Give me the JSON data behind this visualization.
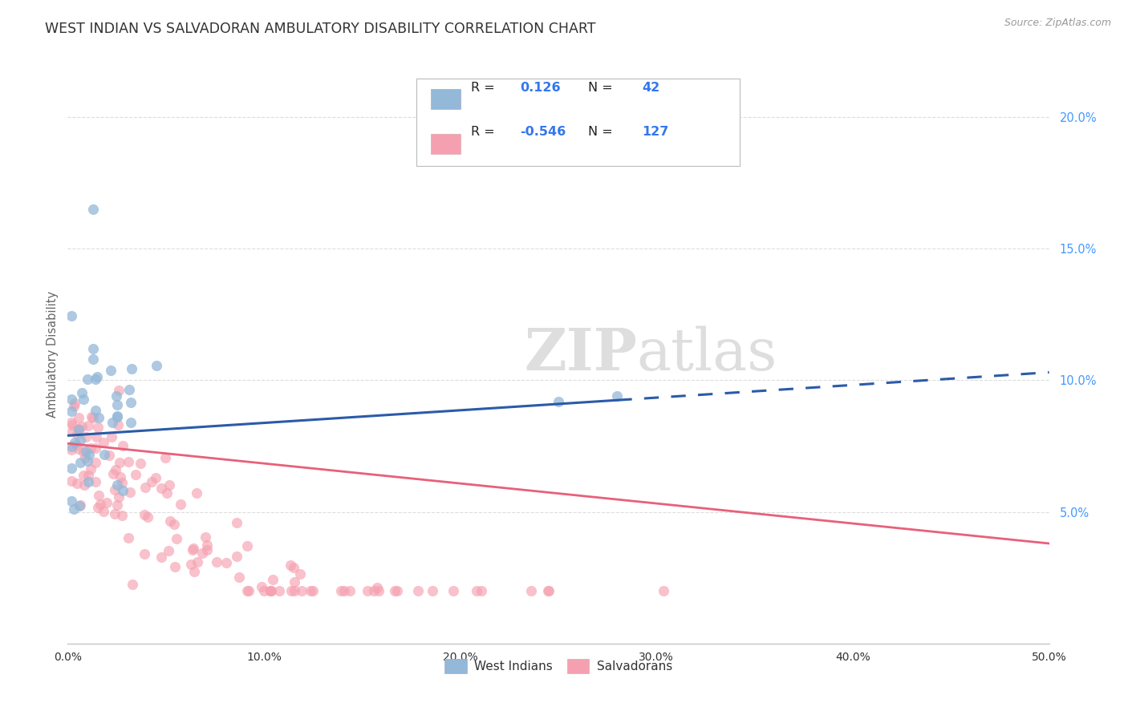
{
  "title": "WEST INDIAN VS SALVADORAN AMBULATORY DISABILITY CORRELATION CHART",
  "source": "Source: ZipAtlas.com",
  "ylabel": "Ambulatory Disability",
  "xlim": [
    0.0,
    0.5
  ],
  "ylim": [
    0.0,
    0.22
  ],
  "xtick_vals": [
    0.0,
    0.1,
    0.2,
    0.3,
    0.4,
    0.5
  ],
  "xtick_labels": [
    "0.0%",
    "10.0%",
    "20.0%",
    "30.0%",
    "40.0%",
    "50.0%"
  ],
  "ytick_vals": [
    0.05,
    0.1,
    0.15,
    0.2
  ],
  "ytick_labels": [
    "5.0%",
    "10.0%",
    "15.0%",
    "20.0%"
  ],
  "legend_r_blue": "0.126",
  "legend_n_blue": "42",
  "legend_r_pink": "-0.546",
  "legend_n_pink": "127",
  "blue_scatter_color": "#93B8D8",
  "pink_scatter_color": "#F5A0B0",
  "blue_line_color": "#2B5BA8",
  "pink_line_color": "#E8607A",
  "watermark_color": "#DEDEDE",
  "background_color": "#FFFFFF",
  "grid_color": "#DDDDDD",
  "title_color": "#333333",
  "ylabel_color": "#666666",
  "ytick_color": "#4499FF",
  "xtick_color": "#333333",
  "source_color": "#999999",
  "blue_line_solid_end": 0.28,
  "blue_line_start_y": 0.079,
  "blue_line_end_y": 0.103,
  "pink_line_start_y": 0.076,
  "pink_line_end_y": 0.038,
  "blue_scatter_seed": 77,
  "pink_scatter_seed": 42
}
